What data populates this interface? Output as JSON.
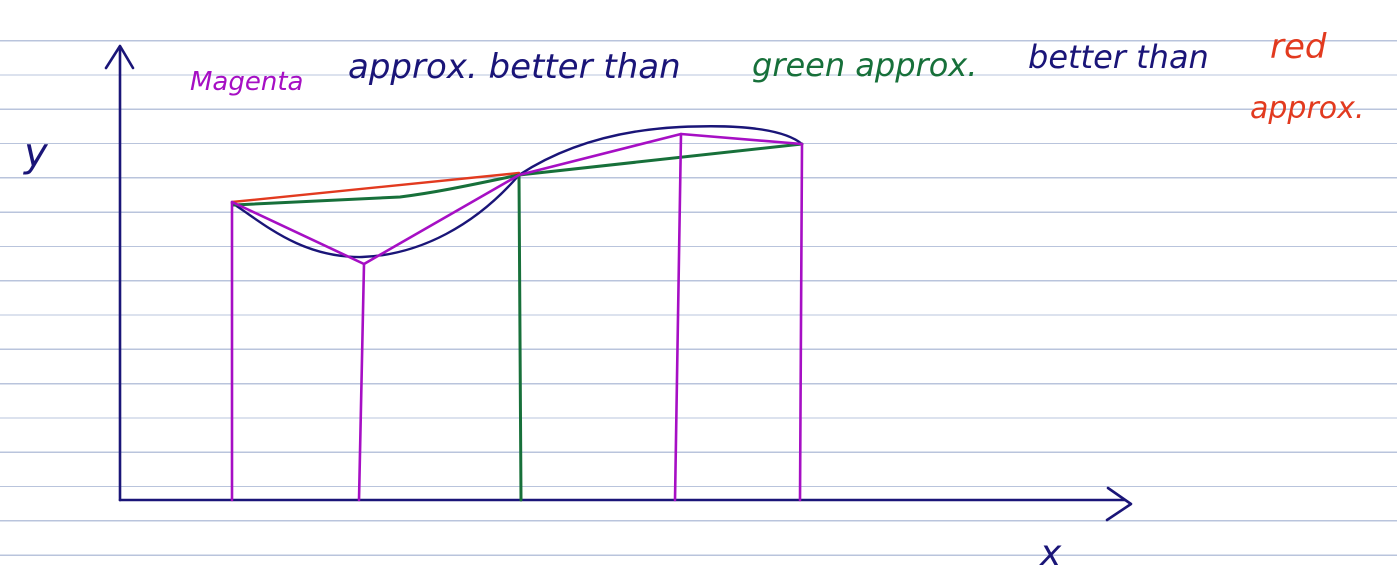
{
  "annotation": {
    "magenta_word": "Magenta",
    "phrase_1": "approx. better than",
    "green_word": "green approx.",
    "phrase_2": "better than",
    "red_word": "red",
    "red_tail": "approx."
  },
  "axes": {
    "x_label": "x",
    "y_label": "y"
  },
  "colors": {
    "ink": "#1a1578",
    "magenta": "#a60fc4",
    "green": "#17703a",
    "red": "#e23a1f",
    "rule": "#b9c4dc"
  }
}
